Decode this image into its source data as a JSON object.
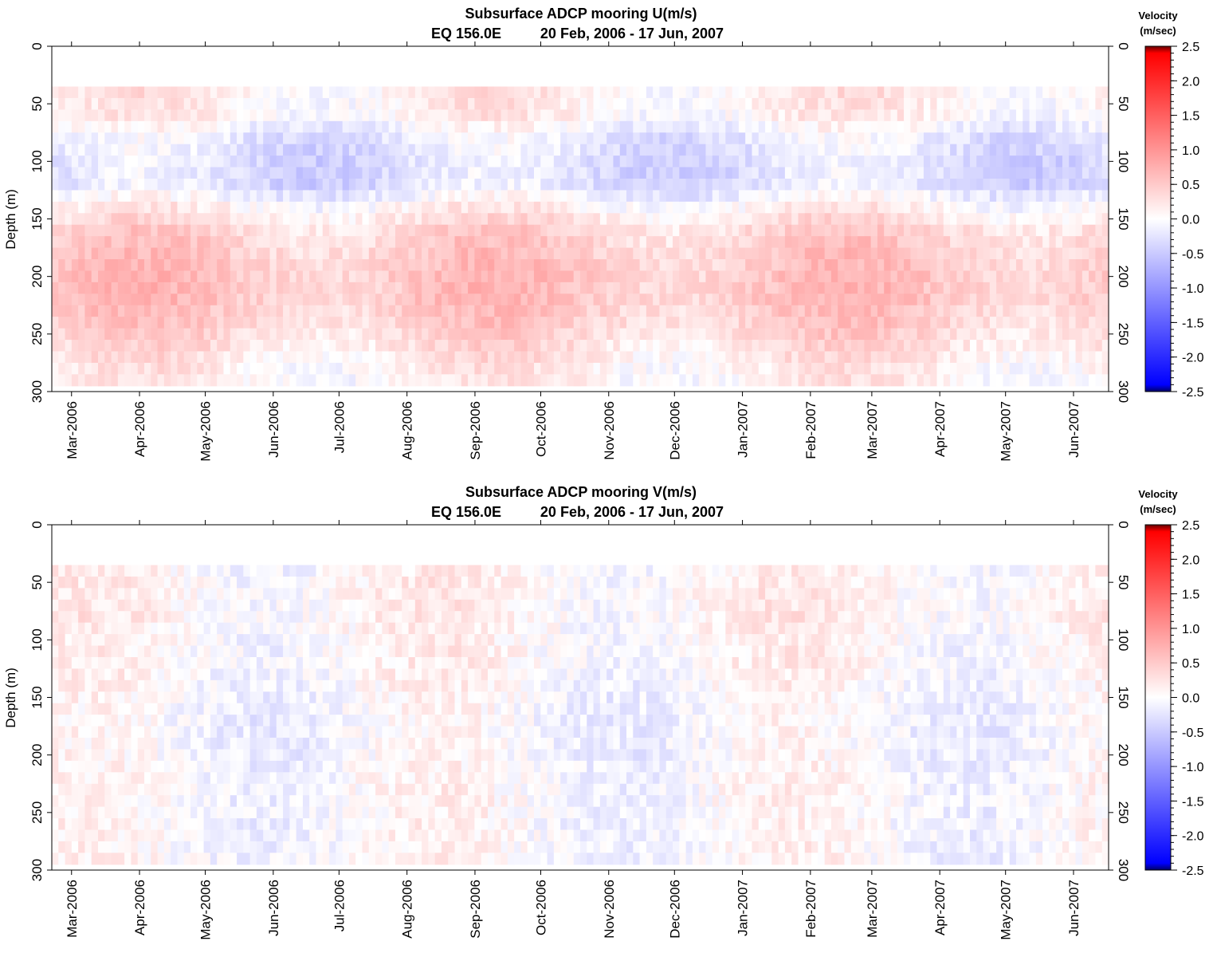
{
  "chart_data": [
    {
      "type": "heatmap",
      "title": "Subsurface ADCP mooring U(m/s)",
      "subtitle_location": "EQ 156.0E",
      "subtitle_period": "20 Feb, 2006 - 17 Jun, 2007",
      "ylabel": "Depth (m)",
      "xlabel": "",
      "x_ticks": [
        "Mar-2006",
        "Apr-2006",
        "May-2006",
        "Jun-2006",
        "Jul-2006",
        "Aug-2006",
        "Sep-2006",
        "Oct-2006",
        "Nov-2006",
        "Dec-2006",
        "Jan-2007",
        "Feb-2007",
        "Mar-2007",
        "Apr-2007",
        "May-2007",
        "Jun-2007"
      ],
      "x_range": [
        "2006-02-20",
        "2007-06-17"
      ],
      "y_ticks": [
        "0",
        "50",
        "100",
        "150",
        "200",
        "250",
        "300"
      ],
      "ylim": [
        300,
        0
      ],
      "depth_range_with_data": [
        35,
        295
      ],
      "colorbar": {
        "title_line1": "Velocity",
        "title_line2": "(m/sec)",
        "ticks": [
          "2.5",
          "2.0",
          "1.5",
          "1.0",
          "0.5",
          "0.0",
          "-0.5",
          "-1.0",
          "-1.5",
          "-2.0",
          "-2.5"
        ],
        "range": [
          -2.5,
          2.5
        ]
      },
      "profile": {
        "depths": [
          40,
          60,
          80,
          100,
          120,
          140,
          160,
          180,
          200,
          220,
          240,
          260,
          280,
          295
        ],
        "typical_values": [
          0.15,
          0.1,
          -0.2,
          -0.3,
          -0.3,
          0.1,
          0.4,
          0.5,
          0.55,
          0.55,
          0.45,
          0.3,
          0.15,
          0.1
        ]
      }
    },
    {
      "type": "heatmap",
      "title": "Subsurface ADCP mooring V(m/s)",
      "subtitle_location": "EQ 156.0E",
      "subtitle_period": "20 Feb, 2006 - 17 Jun, 2007",
      "ylabel": "Depth (m)",
      "xlabel": "",
      "x_ticks": [
        "Mar-2006",
        "Apr-2006",
        "May-2006",
        "Jun-2006",
        "Jul-2006",
        "Aug-2006",
        "Sep-2006",
        "Oct-2006",
        "Nov-2006",
        "Dec-2006",
        "Jan-2007",
        "Feb-2007",
        "Mar-2007",
        "Apr-2007",
        "May-2007",
        "Jun-2007"
      ],
      "x_range": [
        "2006-02-20",
        "2007-06-17"
      ],
      "y_ticks": [
        "0",
        "50",
        "100",
        "150",
        "200",
        "250",
        "300"
      ],
      "ylim": [
        300,
        0
      ],
      "depth_range_with_data": [
        35,
        295
      ],
      "colorbar": {
        "title_line1": "Velocity",
        "title_line2": "(m/sec)",
        "ticks": [
          "2.5",
          "2.0",
          "1.5",
          "1.0",
          "0.5",
          "0.0",
          "-0.5",
          "-1.0",
          "-1.5",
          "-2.0",
          "-2.5"
        ],
        "range": [
          -2.5,
          2.5
        ]
      },
      "profile": {
        "depths": [
          40,
          60,
          80,
          100,
          120,
          140,
          160,
          180,
          200,
          220,
          240,
          260,
          280,
          295
        ],
        "typical_values": [
          0.05,
          0.1,
          0.1,
          0.05,
          0.05,
          0.0,
          -0.05,
          -0.05,
          -0.05,
          0.0,
          0.0,
          0.0,
          0.0,
          0.0
        ]
      }
    }
  ]
}
